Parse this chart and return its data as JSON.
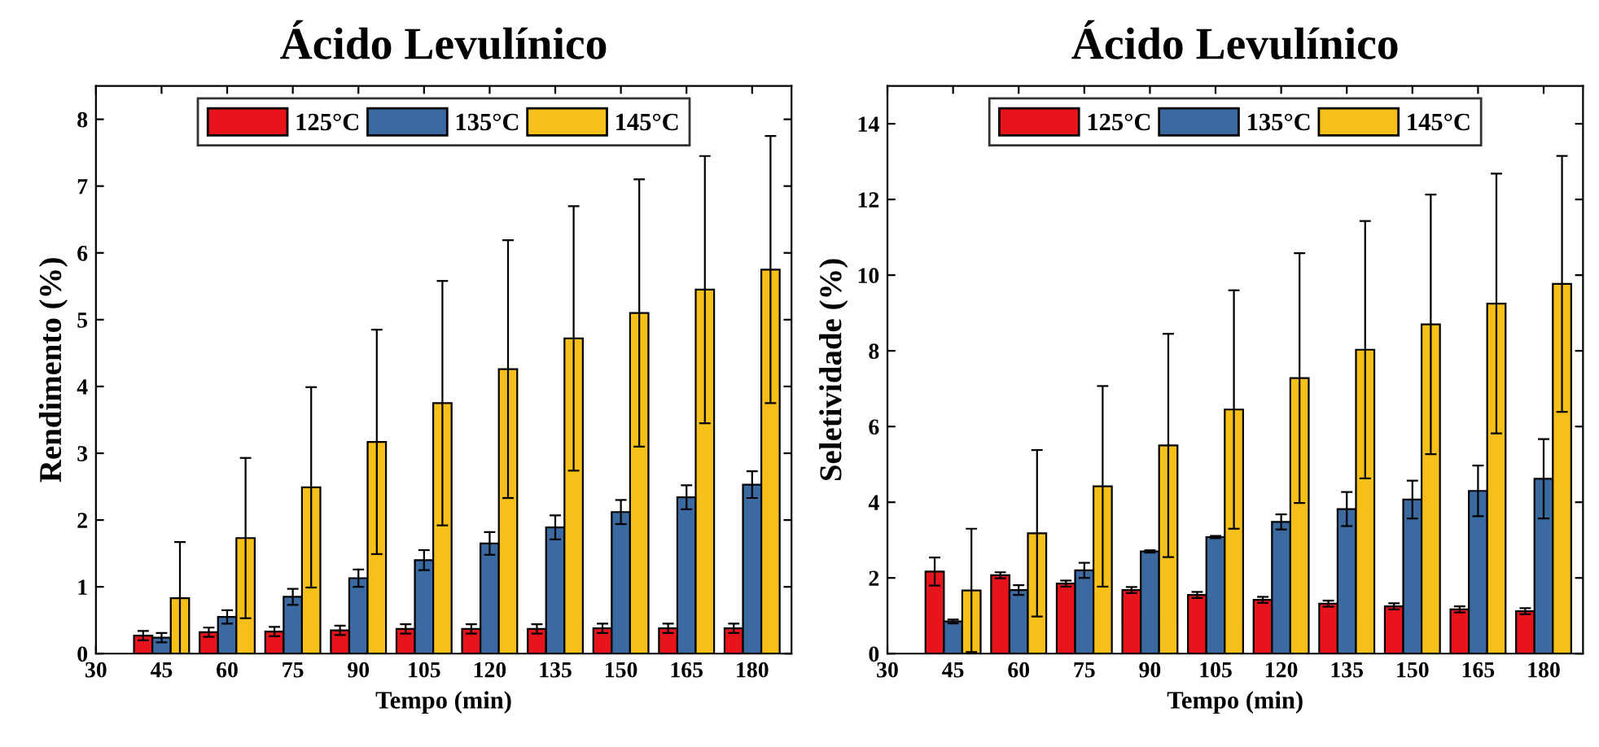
{
  "chart_data": [
    {
      "type": "bar",
      "title": "Ácido Levulínico",
      "xlabel": "Tempo (min)",
      "ylabel": "Rendimento (%)",
      "x": [
        45,
        60,
        75,
        90,
        105,
        120,
        135,
        150,
        165,
        180
      ],
      "xlim": [
        30,
        189
      ],
      "xticks": [
        30,
        45,
        60,
        75,
        90,
        105,
        120,
        135,
        150,
        165,
        180
      ],
      "ylim": [
        0,
        8.5
      ],
      "yticks": [
        0,
        1,
        2,
        3,
        4,
        5,
        6,
        7,
        8
      ],
      "legend": "top",
      "grid": false,
      "series": [
        {
          "name": "125°C",
          "color": "#e8141b",
          "values": [
            0.27,
            0.32,
            0.33,
            0.35,
            0.37,
            0.37,
            0.37,
            0.38,
            0.38,
            0.38
          ],
          "errors": [
            0.07,
            0.07,
            0.07,
            0.07,
            0.07,
            0.07,
            0.07,
            0.07,
            0.07,
            0.07
          ]
        },
        {
          "name": "135°C",
          "color": "#3a6aa0",
          "values": [
            0.24,
            0.55,
            0.85,
            1.13,
            1.4,
            1.65,
            1.89,
            2.12,
            2.34,
            2.53
          ],
          "errors": [
            0.07,
            0.1,
            0.12,
            0.13,
            0.15,
            0.17,
            0.18,
            0.18,
            0.18,
            0.2
          ]
        },
        {
          "name": "145°C",
          "color": "#f7bf1a",
          "values": [
            0.83,
            1.73,
            2.49,
            3.17,
            3.75,
            4.26,
            4.72,
            5.1,
            5.45,
            5.75
          ],
          "errors": [
            0.84,
            1.2,
            1.5,
            1.68,
            1.83,
            1.93,
            1.98,
            2.0,
            2.0,
            2.0
          ]
        }
      ]
    },
    {
      "type": "bar",
      "title": "Ácido Levulínico",
      "xlabel": "Tempo (min)",
      "ylabel": "Seletividade (%)",
      "x": [
        45,
        60,
        75,
        90,
        105,
        120,
        135,
        150,
        165,
        180
      ],
      "xlim": [
        30,
        189
      ],
      "xticks": [
        30,
        45,
        60,
        75,
        90,
        105,
        120,
        135,
        150,
        165,
        180
      ],
      "ylim": [
        0,
        15
      ],
      "yticks": [
        0,
        2,
        4,
        6,
        8,
        10,
        12,
        14
      ],
      "legend": "top",
      "grid": false,
      "series": [
        {
          "name": "125°C",
          "color": "#e8141b",
          "values": [
            2.17,
            2.07,
            1.85,
            1.68,
            1.55,
            1.42,
            1.32,
            1.25,
            1.17,
            1.12
          ],
          "errors": [
            0.37,
            0.08,
            0.08,
            0.08,
            0.08,
            0.08,
            0.08,
            0.08,
            0.08,
            0.08
          ]
        },
        {
          "name": "135°C",
          "color": "#3a6aa0",
          "values": [
            0.85,
            1.68,
            2.2,
            2.7,
            3.08,
            3.48,
            3.82,
            4.07,
            4.3,
            4.62
          ],
          "errors": [
            0.05,
            0.13,
            0.2,
            0.03,
            0.03,
            0.2,
            0.45,
            0.5,
            0.67,
            1.05
          ]
        },
        {
          "name": "145°C",
          "color": "#f7bf1a",
          "values": [
            1.67,
            3.18,
            4.42,
            5.5,
            6.45,
            7.28,
            8.03,
            8.7,
            9.25,
            9.77
          ],
          "errors": [
            1.63,
            2.2,
            2.65,
            2.95,
            3.15,
            3.3,
            3.4,
            3.43,
            3.43,
            3.38
          ]
        }
      ]
    }
  ]
}
